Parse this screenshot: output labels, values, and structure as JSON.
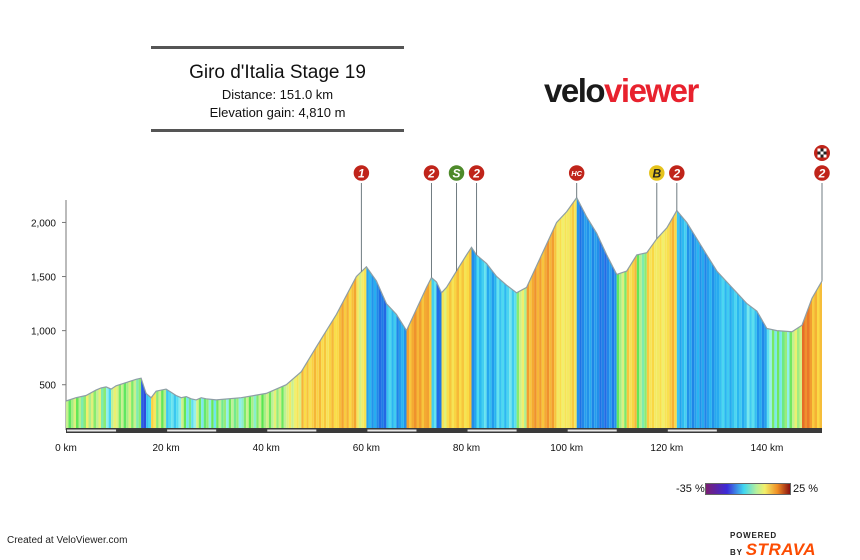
{
  "header": {
    "title": "Giro d'Italia Stage 19",
    "distance": "Distance: 151.0 km",
    "elevation_gain": "Elevation gain: 4,810 m"
  },
  "logo": {
    "part1": "velo",
    "part2": "viewer",
    "part1_color": "#1a1a1a",
    "part2_color": "#e8222e"
  },
  "legend": {
    "min_label": "-35 %",
    "max_label": "25 %"
  },
  "footer": {
    "credit": "Created at VeloViewer.com",
    "powered_by": "POWERED BY",
    "brand": "STRAVA",
    "brand_color": "#fc4c02"
  },
  "chart_data": {
    "type": "area",
    "xlabel": "",
    "ylabel": "",
    "xlim": [
      0,
      151
    ],
    "ylim": [
      100,
      2300
    ],
    "x_ticks": [
      0,
      20,
      40,
      60,
      80,
      100,
      120,
      140
    ],
    "x_tick_labels": [
      "0 km",
      "20 km",
      "40 km",
      "60 km",
      "80 km",
      "100 km",
      "120 km",
      "140 km"
    ],
    "y_ticks": [
      500,
      1000,
      1500,
      2000
    ],
    "y_tick_labels": [
      "500",
      "1,000",
      "1,500",
      "2,000"
    ],
    "profile": {
      "x": [
        0,
        2,
        4,
        6,
        7,
        8,
        9,
        10,
        12,
        14,
        15,
        16,
        17,
        18,
        20,
        21,
        22,
        23,
        24,
        25,
        26,
        27,
        28,
        30,
        35,
        40,
        44,
        47,
        50,
        54,
        58,
        60,
        62,
        64,
        66,
        68,
        70,
        72,
        73,
        74,
        75,
        76,
        78,
        80,
        81,
        82,
        84,
        86,
        88,
        90,
        92,
        94,
        96,
        98,
        100,
        102,
        104,
        106,
        108,
        110,
        112,
        114,
        116,
        118,
        120,
        122,
        124,
        126,
        128,
        130,
        132,
        134,
        136,
        138,
        140,
        142,
        145,
        147,
        149,
        151
      ],
      "y": [
        350,
        380,
        400,
        450,
        470,
        480,
        460,
        490,
        520,
        550,
        560,
        420,
        380,
        440,
        460,
        430,
        400,
        380,
        390,
        370,
        360,
        380,
        370,
        360,
        380,
        420,
        500,
        620,
        850,
        1150,
        1500,
        1590,
        1460,
        1250,
        1150,
        1000,
        1200,
        1400,
        1490,
        1450,
        1350,
        1400,
        1550,
        1700,
        1770,
        1700,
        1620,
        1500,
        1420,
        1350,
        1400,
        1600,
        1800,
        2000,
        2100,
        2230,
        2050,
        1900,
        1700,
        1520,
        1550,
        1700,
        1720,
        1850,
        1950,
        2110,
        2000,
        1850,
        1700,
        1550,
        1450,
        1350,
        1250,
        1180,
        1020,
        1000,
        990,
        1050,
        1300,
        1460
      ]
    },
    "markers": [
      {
        "label": "1",
        "km": 59,
        "color": "#c0241a"
      },
      {
        "label": "2",
        "km": 73,
        "color": "#c0241a"
      },
      {
        "label": "S",
        "km": 78,
        "color": "#4e8a2a"
      },
      {
        "label": "2",
        "km": 82,
        "color": "#c0241a"
      },
      {
        "label": "HC",
        "km": 102,
        "color": "#c0241a"
      },
      {
        "label": "B",
        "km": 118,
        "color": "#e5c21c"
      },
      {
        "label": "2",
        "km": 122,
        "color": "#c0241a"
      },
      {
        "label": "2",
        "km": 151,
        "color": "#c0241a"
      }
    ]
  }
}
